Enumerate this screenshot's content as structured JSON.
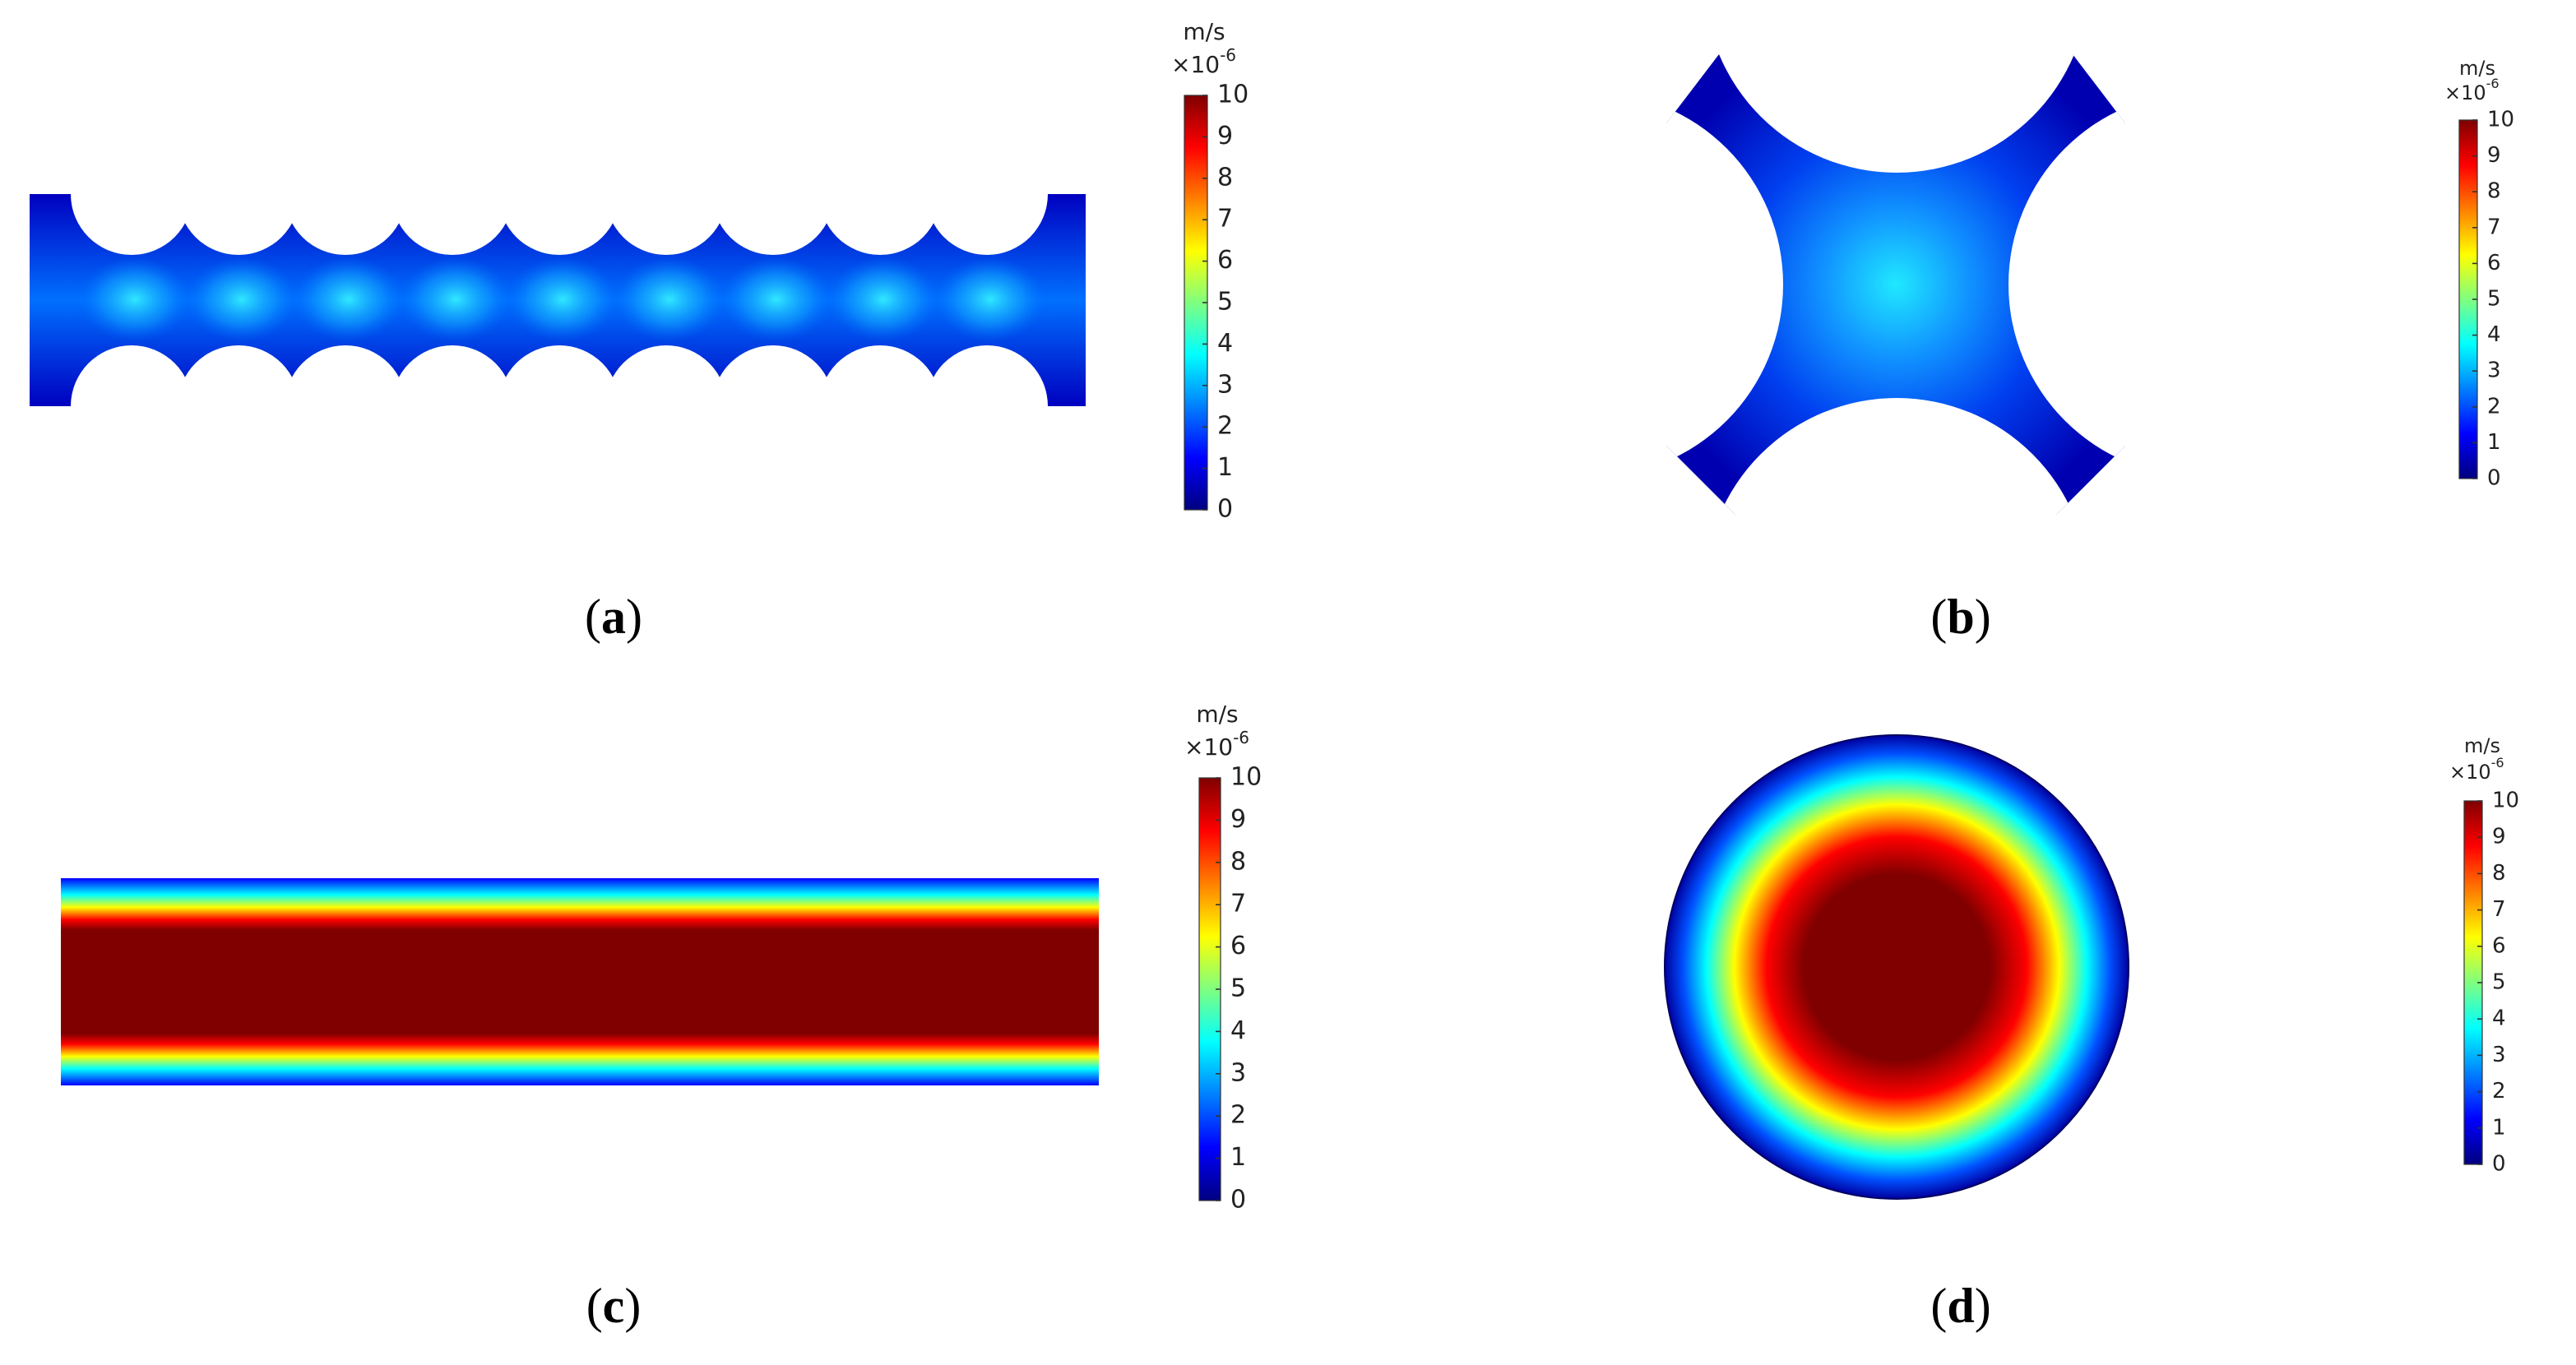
{
  "panels": [
    {
      "caption": {
        "open": "(",
        "letter": "a",
        "close": ")"
      },
      "colorbar": {
        "unit": "m/s",
        "scale_base": "×10",
        "scale_exp": "-6",
        "range": [
          0,
          10
        ],
        "ticks": [
          0,
          1,
          2,
          3,
          4,
          5,
          6,
          7,
          8,
          9,
          10
        ]
      }
    },
    {
      "caption": {
        "open": "(",
        "letter": "b",
        "close": ")"
      },
      "colorbar": {
        "unit": "m/s",
        "scale_base": "×10",
        "scale_exp": "-6",
        "range": [
          0,
          10
        ],
        "ticks": [
          0,
          1,
          2,
          3,
          4,
          5,
          6,
          7,
          8,
          9,
          10
        ]
      }
    },
    {
      "caption": {
        "open": "(",
        "letter": "c",
        "close": ")"
      },
      "colorbar": {
        "unit": "m/s",
        "scale_base": "×10",
        "scale_exp": "-6",
        "range": [
          0,
          10
        ],
        "ticks": [
          0,
          1,
          2,
          3,
          4,
          5,
          6,
          7,
          8,
          9,
          10
        ]
      }
    },
    {
      "caption": {
        "open": "(",
        "letter": "d",
        "close": ")"
      },
      "colorbar": {
        "unit": "m/s",
        "scale_base": "×10",
        "scale_exp": "-6",
        "range": [
          0,
          10
        ],
        "ticks": [
          0,
          1,
          2,
          3,
          4,
          5,
          6,
          7,
          8,
          9,
          10
        ]
      }
    }
  ]
}
